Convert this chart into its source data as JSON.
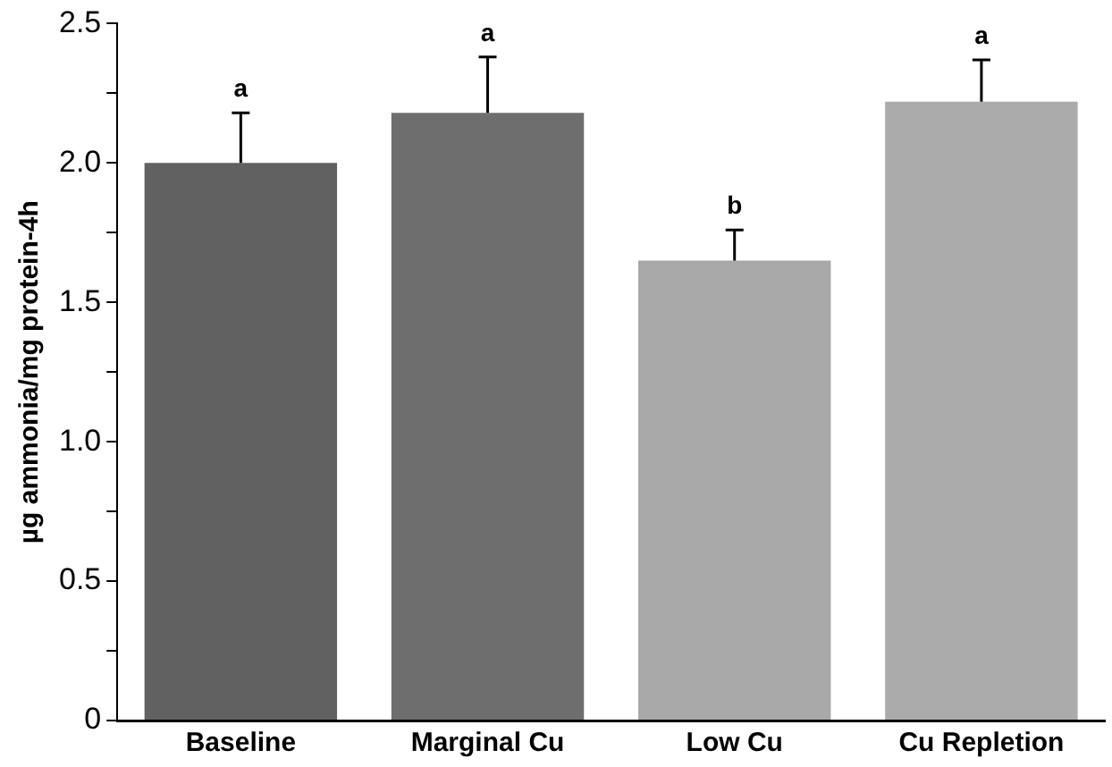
{
  "chart_data": {
    "type": "bar",
    "ylabel": "µg ammonia/mg protein-4h",
    "categories": [
      "Baseline",
      "Marginal Cu",
      "Low Cu",
      "Cu Repletion"
    ],
    "values": [
      2.0,
      2.18,
      1.65,
      2.22
    ],
    "colors": [
      "#616161",
      "#6e6e6e",
      "#a8a8a8",
      "#ababab"
    ],
    "errors": [
      [
        2.0,
        2.18
      ],
      [
        2.18,
        2.38
      ],
      [
        1.65,
        1.76
      ],
      [
        2.22,
        2.37
      ]
    ],
    "ylim": [
      0,
      2.5
    ],
    "yticks": [
      0,
      {
        "value": 0.25,
        "label": null
      },
      {
        "value": 0.5,
        "label": "0.5"
      },
      {
        "value": 0.75,
        "label": null
      },
      {
        "value": 1,
        "label": "1.0"
      },
      {
        "value": 1.25,
        "label": null
      },
      {
        "value": 1.5,
        "label": "1.5"
      },
      {
        "value": 1.75,
        "label": null
      },
      {
        "value": 2,
        "label": "2.0"
      },
      {
        "value": 2.25,
        "label": null
      },
      {
        "value": 2.5,
        "label": "2.5"
      }
    ],
    "annotations": [
      "a",
      "a",
      "b",
      "a"
    ],
    "grid": false,
    "legend": false
  }
}
